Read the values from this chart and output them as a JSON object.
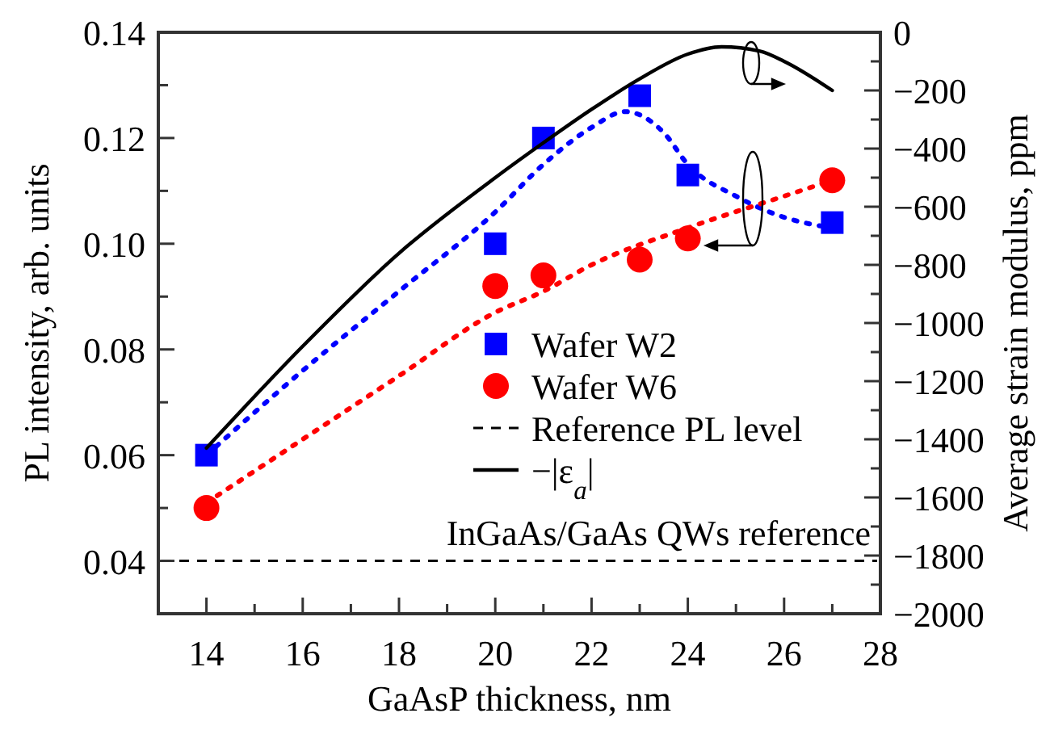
{
  "chart_data": {
    "type": "scatter",
    "xlabel": "GaAsP thickness, nm",
    "ylabel": "PL intensity, arb. units",
    "y2label": "Average strain modulus, ppm",
    "xlim": [
      13,
      28
    ],
    "xticks": [
      {
        "value": 13,
        "label": null
      },
      14,
      {
        "value": 15,
        "label": null
      },
      16,
      {
        "value": 17,
        "label": null
      },
      18,
      {
        "value": 19,
        "label": null
      },
      20,
      {
        "value": 21,
        "label": null
      },
      22,
      {
        "value": 23,
        "label": null
      },
      24,
      {
        "value": 25,
        "label": null
      },
      26,
      {
        "value": 27,
        "label": null
      },
      28
    ],
    "ylim": [
      0.03,
      0.14
    ],
    "yticks": [
      0.04,
      {
        "value": 0.05,
        "label": null
      },
      0.06,
      {
        "value": 0.07,
        "label": null
      },
      0.08,
      {
        "value": 0.09,
        "label": null
      },
      {
        "value": 0.1,
        "label": "0.10"
      },
      {
        "value": 0.11,
        "label": null
      },
      0.12,
      {
        "value": 0.13,
        "label": null
      },
      0.14
    ],
    "y2lim": [
      -2000,
      0
    ],
    "y2ticks": [
      -2000,
      {
        "value": -1900,
        "label": null
      },
      -1800,
      {
        "value": -1700,
        "label": null
      },
      -1600,
      {
        "value": -1500,
        "label": null
      },
      -1400,
      {
        "value": -1300,
        "label": null
      },
      -1200,
      {
        "value": -1100,
        "label": null
      },
      -1000,
      {
        "value": -900,
        "label": null
      },
      -800,
      {
        "value": -700,
        "label": null
      },
      -600,
      {
        "value": -500,
        "label": null
      },
      -400,
      {
        "value": -300,
        "label": null
      },
      -200,
      {
        "value": -100,
        "label": null
      },
      0
    ],
    "grid": false,
    "legend": "bottom right",
    "series": [
      {
        "name": "Wafer W2",
        "marker": "square",
        "color": "#0000ff",
        "x": [
          14,
          20,
          21,
          23,
          24,
          27
        ],
        "values": [
          0.06,
          0.1,
          0.12,
          0.128,
          0.113,
          0.104
        ]
      },
      {
        "name": "Wafer W6",
        "marker": "circle",
        "color": "#ff0000",
        "x": [
          14,
          20,
          21,
          23,
          24,
          27
        ],
        "values": [
          0.05,
          0.092,
          0.094,
          0.097,
          0.101,
          0.112
        ]
      },
      {
        "type": "line",
        "line_style": "dotted",
        "marker": "none",
        "color": "#0000ff",
        "x": [
          14,
          16,
          18,
          20,
          21,
          22,
          22.7,
          23.5,
          24,
          25,
          26,
          27
        ],
        "values": [
          0.06,
          0.076,
          0.091,
          0.106,
          0.115,
          0.122,
          0.125,
          0.121,
          0.115,
          0.109,
          0.105,
          0.103
        ]
      },
      {
        "type": "line",
        "line_style": "dotted",
        "marker": "none",
        "color": "#ff0000",
        "x": [
          14,
          16,
          18,
          20,
          21,
          22,
          24,
          26,
          27
        ],
        "values": [
          0.051,
          0.063,
          0.075,
          0.087,
          0.091,
          0.096,
          0.103,
          0.109,
          0.112
        ]
      },
      {
        "name": "−|ε$_{a}$|",
        "type": "line",
        "line_style": "solid",
        "marker": "none",
        "axis": "y2",
        "color": "#000000",
        "x": [
          14,
          16,
          18,
          20,
          21,
          22,
          23,
          24,
          24.7,
          25.5,
          26,
          27
        ],
        "values": [
          -1430,
          -1080,
          -760,
          -500,
          -380,
          -265,
          -160,
          -75,
          -50,
          -65,
          -100,
          -200
        ]
      }
    ],
    "ref_lines": [
      {
        "axis": "y",
        "value": 0.04,
        "label": "InGaAs/GaAs QWs reference",
        "color": "#000000",
        "line_style": "dashed"
      }
    ],
    "annotations": [
      "Reference PL level"
    ]
  }
}
